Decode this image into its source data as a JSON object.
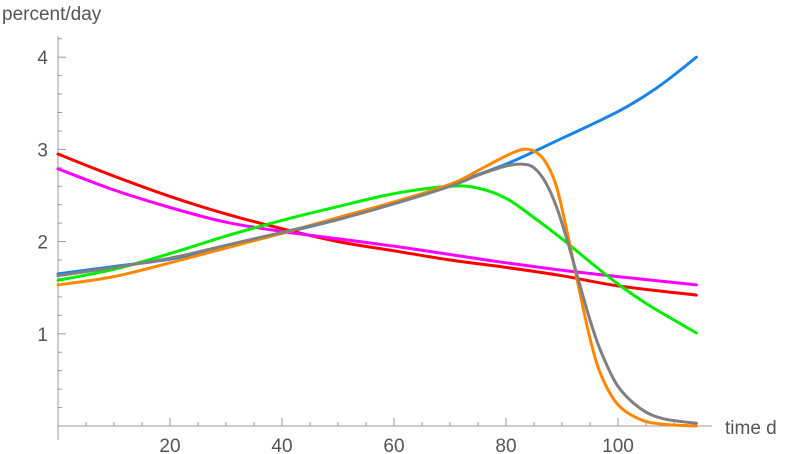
{
  "chart_data": {
    "type": "line",
    "title": "",
    "xlabel": "time d",
    "ylabel": "percent/day",
    "xlim": [
      0,
      114
    ],
    "ylim": [
      0,
      4.2
    ],
    "x_ticks": [
      20,
      40,
      60,
      80,
      100
    ],
    "y_ticks": [
      1,
      2,
      3,
      4
    ],
    "grid": false,
    "series": [
      {
        "color": "#1a84e6",
        "points": [
          [
            0,
            1.65
          ],
          [
            10,
            1.73
          ],
          [
            20,
            1.81
          ],
          [
            30,
            1.94
          ],
          [
            40,
            2.09
          ],
          [
            50,
            2.24
          ],
          [
            60,
            2.42
          ],
          [
            70,
            2.62
          ],
          [
            80,
            2.84
          ],
          [
            90,
            3.12
          ],
          [
            100,
            3.41
          ],
          [
            107,
            3.67
          ],
          [
            114,
            4.0
          ]
        ]
      },
      {
        "color": "#ff0000",
        "points": [
          [
            0,
            2.95
          ],
          [
            10,
            2.71
          ],
          [
            20,
            2.49
          ],
          [
            30,
            2.3
          ],
          [
            40,
            2.14
          ],
          [
            50,
            2.0
          ],
          [
            60,
            1.9
          ],
          [
            70,
            1.8
          ],
          [
            80,
            1.72
          ],
          [
            90,
            1.63
          ],
          [
            100,
            1.52
          ],
          [
            114,
            1.42
          ]
        ]
      },
      {
        "color": "#ff00ff",
        "points": [
          [
            0,
            2.79
          ],
          [
            10,
            2.56
          ],
          [
            20,
            2.37
          ],
          [
            30,
            2.21
          ],
          [
            40,
            2.11
          ],
          [
            50,
            2.03
          ],
          [
            60,
            1.95
          ],
          [
            70,
            1.86
          ],
          [
            80,
            1.77
          ],
          [
            90,
            1.69
          ],
          [
            100,
            1.62
          ],
          [
            114,
            1.53
          ]
        ]
      },
      {
        "color": "#00ee00",
        "points": [
          [
            0,
            1.58
          ],
          [
            10,
            1.7
          ],
          [
            20,
            1.87
          ],
          [
            30,
            2.06
          ],
          [
            40,
            2.23
          ],
          [
            50,
            2.38
          ],
          [
            60,
            2.52
          ],
          [
            70,
            2.6
          ],
          [
            75,
            2.58
          ],
          [
            80,
            2.47
          ],
          [
            85,
            2.26
          ],
          [
            90,
            2.03
          ],
          [
            95,
            1.78
          ],
          [
            100,
            1.54
          ],
          [
            105,
            1.33
          ],
          [
            110,
            1.15
          ],
          [
            114,
            1.01
          ]
        ]
      },
      {
        "color": "#ff8800",
        "points": [
          [
            0,
            1.53
          ],
          [
            10,
            1.62
          ],
          [
            20,
            1.77
          ],
          [
            30,
            1.93
          ],
          [
            40,
            2.09
          ],
          [
            50,
            2.26
          ],
          [
            60,
            2.43
          ],
          [
            70,
            2.62
          ],
          [
            75,
            2.77
          ],
          [
            80,
            2.93
          ],
          [
            83,
            3.0
          ],
          [
            85,
            2.98
          ],
          [
            87,
            2.87
          ],
          [
            89,
            2.6
          ],
          [
            91,
            2.08
          ],
          [
            93,
            1.5
          ],
          [
            95,
            0.95
          ],
          [
            97,
            0.55
          ],
          [
            100,
            0.23
          ],
          [
            104,
            0.07
          ],
          [
            108,
            0.02
          ],
          [
            114,
            0.0
          ]
        ]
      },
      {
        "color": "#808080",
        "points": [
          [
            0,
            1.63
          ],
          [
            10,
            1.72
          ],
          [
            20,
            1.82
          ],
          [
            30,
            1.96
          ],
          [
            40,
            2.1
          ],
          [
            50,
            2.24
          ],
          [
            60,
            2.41
          ],
          [
            70,
            2.6
          ],
          [
            75,
            2.72
          ],
          [
            80,
            2.82
          ],
          [
            83,
            2.84
          ],
          [
            85,
            2.8
          ],
          [
            87,
            2.65
          ],
          [
            89,
            2.38
          ],
          [
            91,
            2.0
          ],
          [
            93,
            1.57
          ],
          [
            95,
            1.15
          ],
          [
            97,
            0.8
          ],
          [
            100,
            0.43
          ],
          [
            104,
            0.19
          ],
          [
            108,
            0.08
          ],
          [
            114,
            0.03
          ]
        ]
      }
    ]
  }
}
